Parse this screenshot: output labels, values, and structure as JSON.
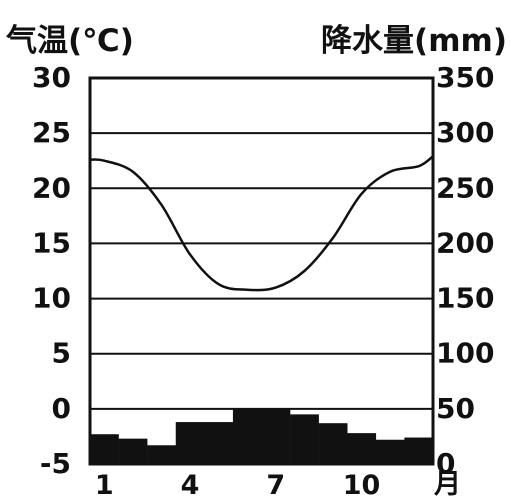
{
  "chart_data": {
    "type": "bar+line",
    "left_axis_title": "气温(℃)",
    "right_axis_title": "降水量(mm)",
    "x_unit_label": "月",
    "x": [
      1,
      2,
      3,
      4,
      5,
      6,
      7,
      8,
      9,
      10,
      11,
      12
    ],
    "x_tick_labels": [
      "1",
      "4",
      "7",
      "10"
    ],
    "left_ticks": [
      "30",
      "25",
      "20",
      "15",
      "10",
      "5",
      "0",
      "-5"
    ],
    "right_ticks": [
      "350",
      "300",
      "250",
      "200",
      "150",
      "100",
      "50",
      "0"
    ],
    "left_ylim": [
      -5,
      30
    ],
    "right_ylim": [
      0,
      350
    ],
    "grid": true,
    "temperature_c": [
      22.5,
      21.5,
      18.5,
      14.0,
      11.3,
      10.8,
      11.0,
      12.5,
      15.5,
      19.5,
      21.5,
      22.0
    ],
    "precipitation_mm": [
      27,
      23,
      17,
      38,
      38,
      50,
      50,
      45,
      37,
      28,
      22,
      24
    ]
  }
}
